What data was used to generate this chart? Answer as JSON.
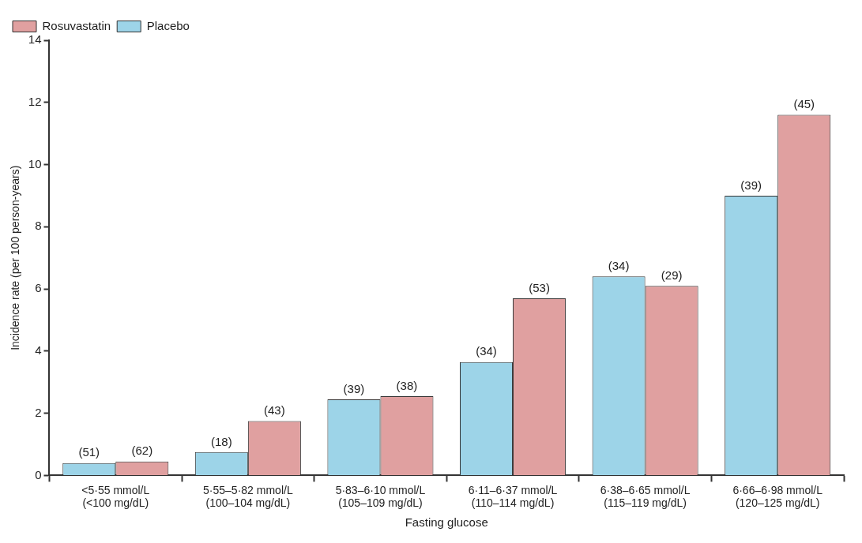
{
  "chart_data": {
    "type": "bar",
    "xlabel": "Fasting glucose",
    "ylabel": "Incidence rate (per 100 person-years)",
    "categories": [
      "<5·55 mmol/L\n(<100 mg/dL)",
      "5·55–5·82 mmol/L\n(100–104 mg/dL)",
      "5·83–6·10 mmol/L\n(105–109 mg/dL)",
      "6·11–6·37 mmol/L\n(110–114 mg/dL)",
      "6·38–6·65 mmol/L\n(115–119 mg/dL)",
      "6·66–6·98 mmol/L\n(120–125 mg/dL)"
    ],
    "series": [
      {
        "name": "Placebo",
        "color": "#9dd4e8",
        "values": [
          0.4,
          0.75,
          2.45,
          3.65,
          6.4,
          9.0
        ]
      },
      {
        "name": "Rosuvastatin",
        "color": "#e0a0a0",
        "values": [
          0.45,
          1.75,
          2.55,
          5.7,
          6.1,
          11.6
        ]
      }
    ],
    "annotations": [
      {
        "text": "(51)",
        "x": "<5·55 mmol/L\n(<100 mg/dL)",
        "y": 0.4
      },
      {
        "text": "(62)",
        "x": "<5·55 mmol/L\n(<100 mg/dL)",
        "y": 0.45
      },
      {
        "text": "(18)",
        "x": "5·55–5·82 mmol/L\n(100–104 mg/dL)",
        "y": 0.75
      },
      {
        "text": "(43)",
        "x": "5·55–5·82 mmol/L\n(100–104 mg/dL)",
        "y": 1.75
      },
      {
        "text": "(39)",
        "x": "5·83–6·10 mmol/L\n(105–109 mg/dL)",
        "y": 2.45
      },
      {
        "text": "(38)",
        "x": "5·83–6·10 mmol/L\n(105–109 mg/dL)",
        "y": 2.55
      },
      {
        "text": "(34)",
        "x": "6·11–6·37 mmol/L\n(110–114 mg/dL)",
        "y": 3.65
      },
      {
        "text": "(53)",
        "x": "6·11–6·37 mmol/L\n(110–114 mg/dL)",
        "y": 5.7
      },
      {
        "text": "(34)",
        "x": "6·38–6·65 mmol/L\n(115–119 mg/dL)",
        "y": 6.4
      },
      {
        "text": "(29)",
        "x": "6·38–6·65 mmol/L\n(115–119 mg/dL)",
        "y": 6.1
      },
      {
        "text": "(39)",
        "x": "6·66–6·98 mmol/L\n(120–125 mg/dL)",
        "y": 9.0
      },
      {
        "text": "(45)",
        "x": "6·66–6·98 mmol/L\n(120–125 mg/dL)",
        "y": 11.6
      }
    ],
    "ylim": [
      0,
      14
    ],
    "yticks": [
      0,
      2,
      4,
      6,
      8,
      10,
      12,
      14
    ],
    "grid": false,
    "legend": "top left"
  }
}
